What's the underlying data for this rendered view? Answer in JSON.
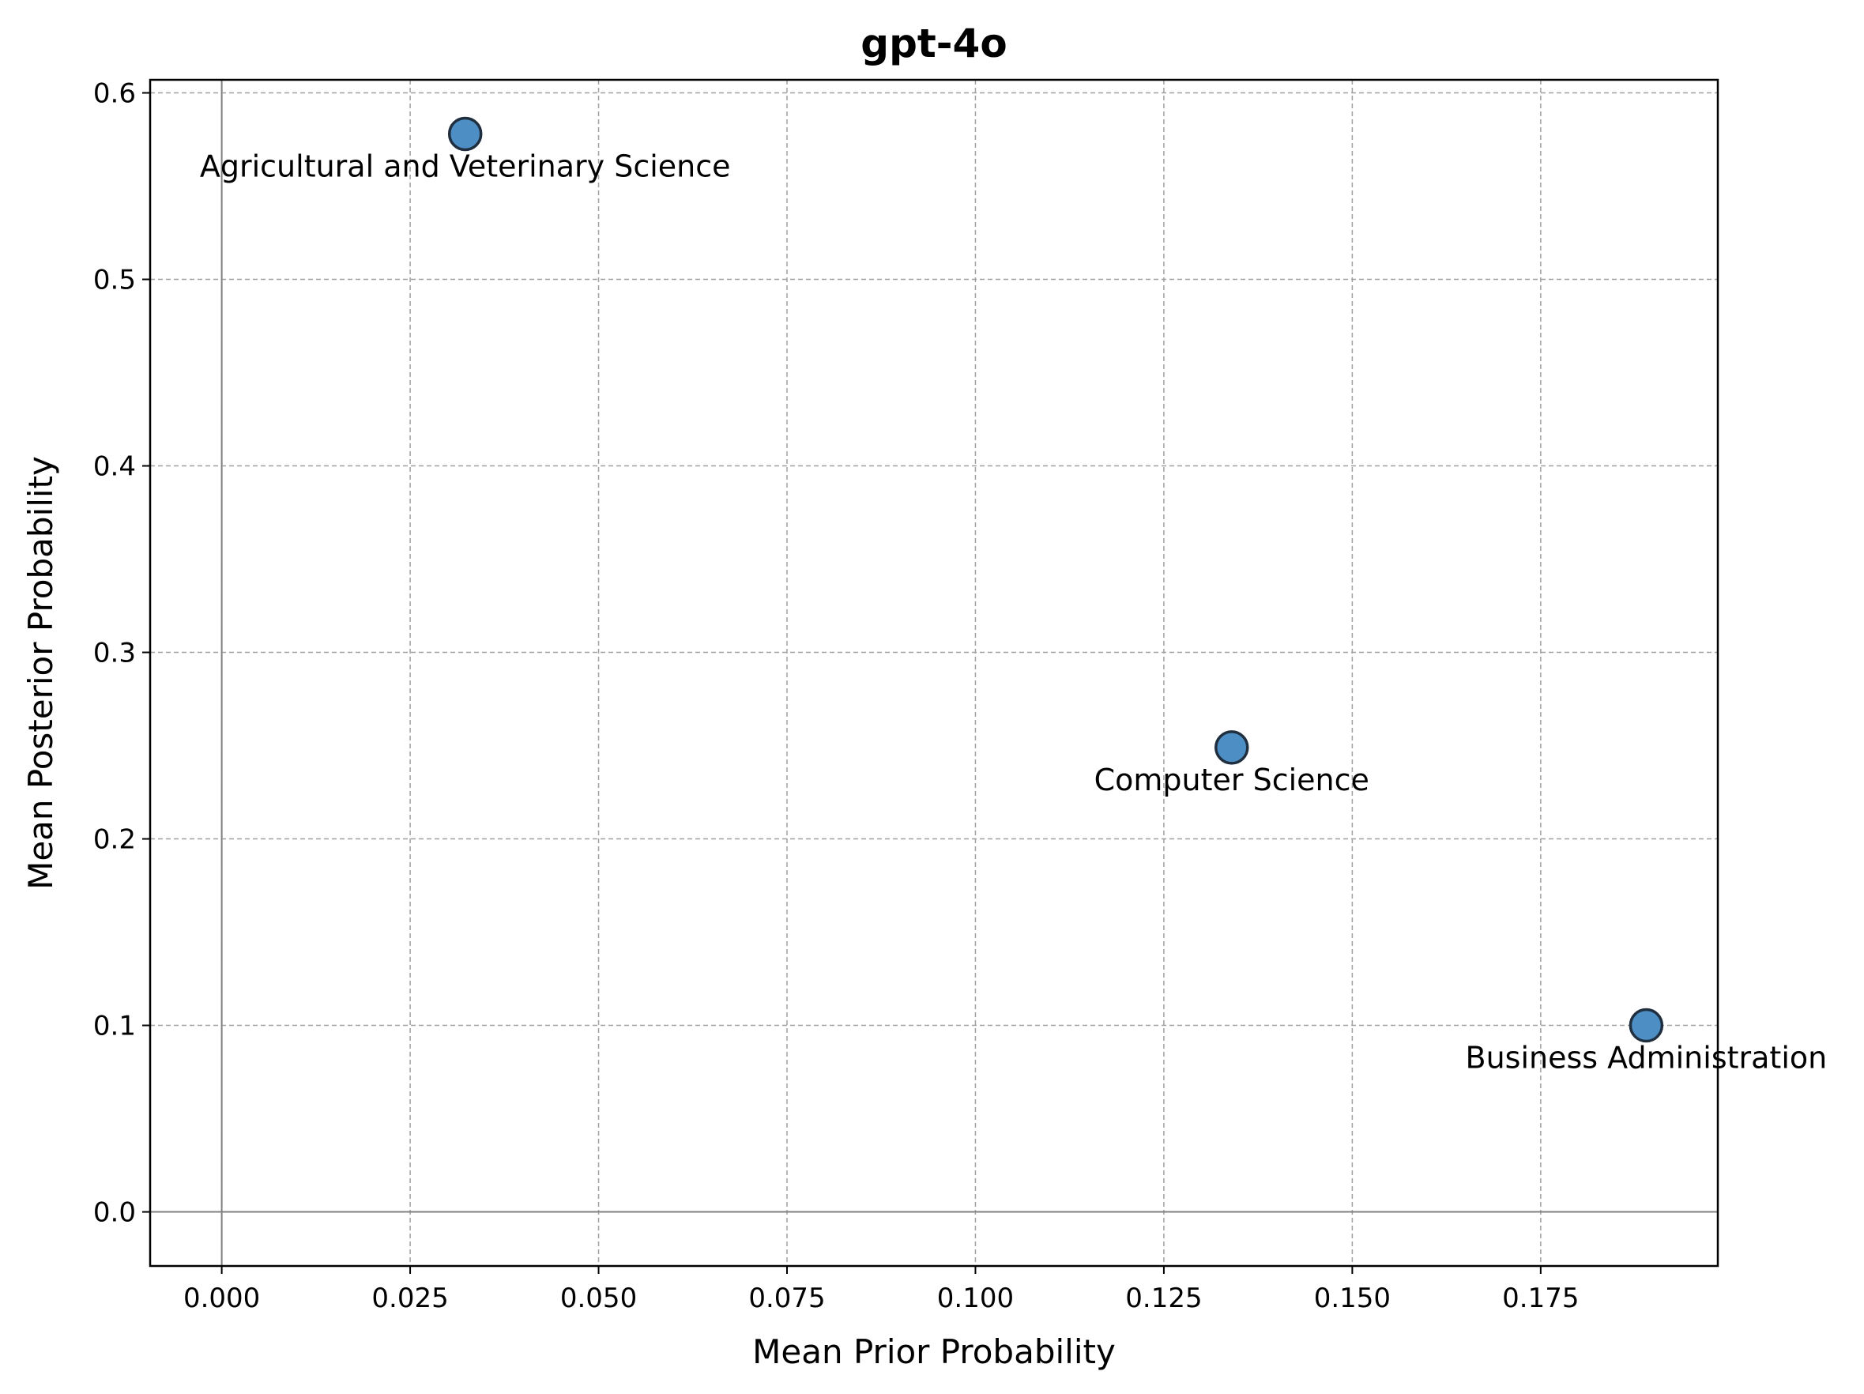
{
  "chart_data": {
    "type": "scatter",
    "title": "gpt-4o",
    "xlabel": "Mean Prior Probability",
    "ylabel": "Mean Posterior Probability",
    "xlim": [
      -0.0095,
      0.1985
    ],
    "ylim": [
      -0.029,
      0.607
    ],
    "xticks": [
      0.0,
      0.025,
      0.05,
      0.075,
      0.1,
      0.125,
      0.15,
      0.175
    ],
    "xtick_labels": [
      "0.000",
      "0.025",
      "0.050",
      "0.075",
      "0.100",
      "0.125",
      "0.150",
      "0.175"
    ],
    "yticks": [
      0.0,
      0.1,
      0.2,
      0.3,
      0.4,
      0.5,
      0.6
    ],
    "ytick_labels": [
      "0.0",
      "0.1",
      "0.2",
      "0.3",
      "0.4",
      "0.5",
      "0.6"
    ],
    "grid": true,
    "reference_lines": {
      "x": 0,
      "y": 0
    },
    "marker_color": "#4d8fc4",
    "marker_edge_color": "#1f2f40",
    "points": [
      {
        "x": 0.0323,
        "y": 0.578,
        "label": "Agricultural and Veterinary Science"
      },
      {
        "x": 0.134,
        "y": 0.249,
        "label": "Computer Science"
      },
      {
        "x": 0.189,
        "y": 0.1,
        "label": "Business Administration"
      }
    ]
  }
}
